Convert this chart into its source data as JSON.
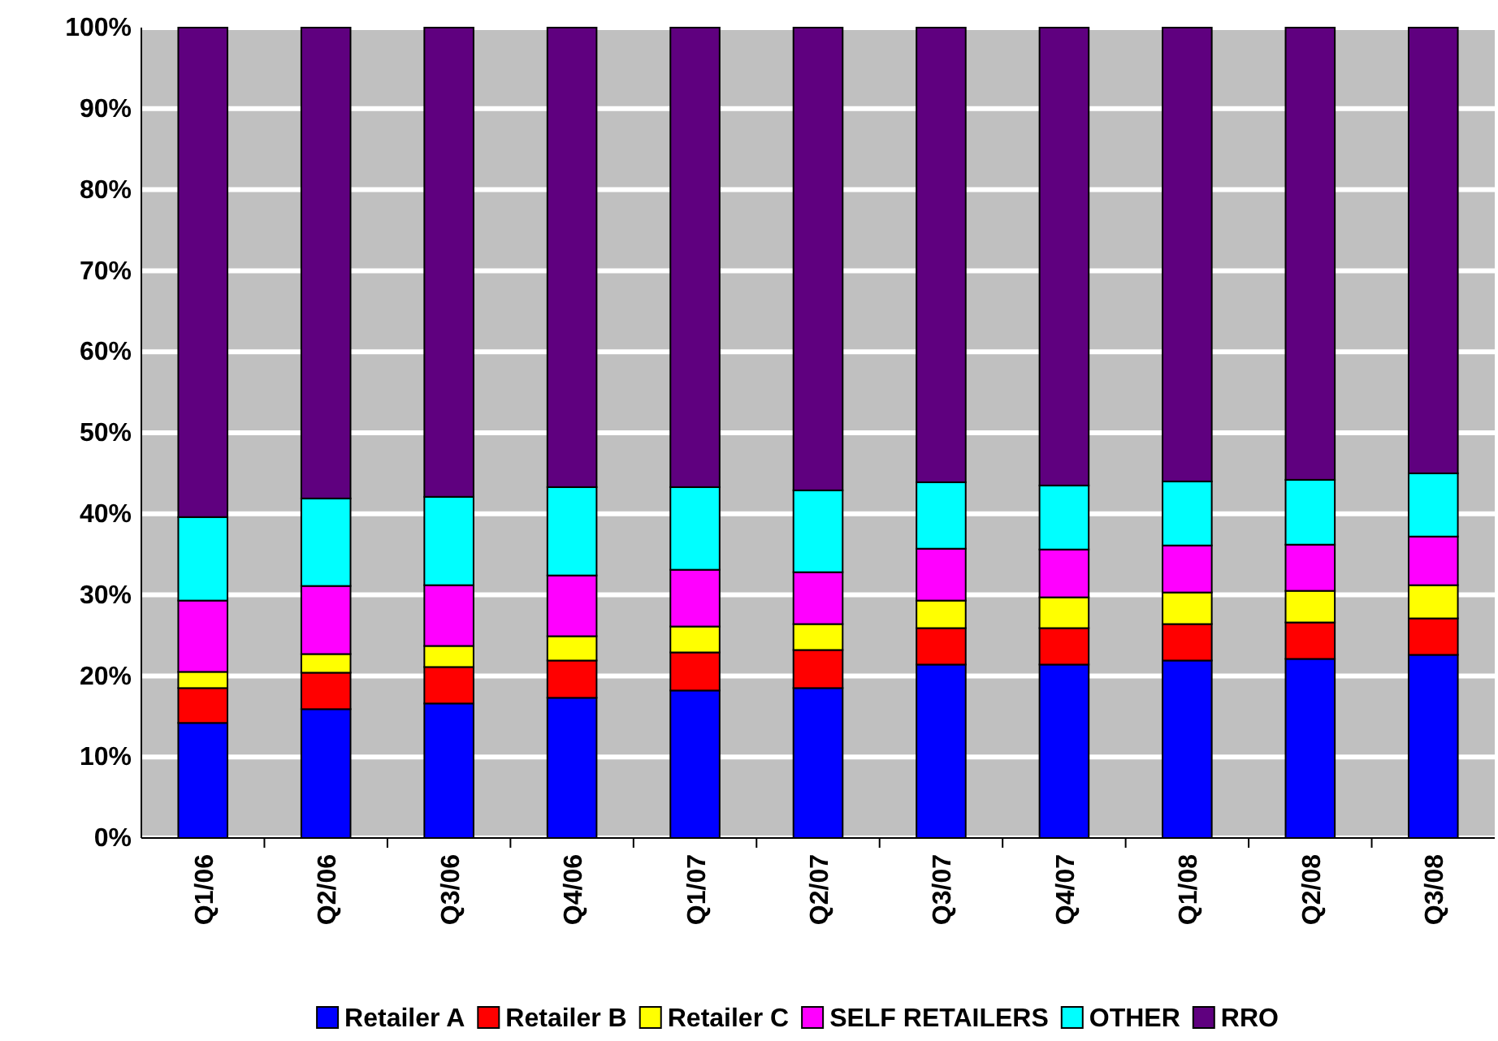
{
  "chart_data": {
    "type": "bar",
    "stacked": true,
    "categories": [
      "Q1/06",
      "Q2/06",
      "Q3/06",
      "Q4/06",
      "Q1/07",
      "Q2/07",
      "Q3/07",
      "Q4/07",
      "Q1/08",
      "Q2/08",
      "Q3/08"
    ],
    "series": [
      {
        "name": "Retailer A",
        "color": "#0000ff",
        "values": [
          14.2,
          15.9,
          16.6,
          17.3,
          18.2,
          18.5,
          21.4,
          21.4,
          21.9,
          22.1,
          22.6
        ]
      },
      {
        "name": "Retailer B",
        "color": "#ff0000",
        "values": [
          4.3,
          4.5,
          4.5,
          4.6,
          4.7,
          4.7,
          4.5,
          4.5,
          4.5,
          4.5,
          4.5
        ]
      },
      {
        "name": "Retailer C",
        "color": "#ffff00",
        "values": [
          2.0,
          2.3,
          2.6,
          3.0,
          3.2,
          3.2,
          3.4,
          3.8,
          3.9,
          3.9,
          4.1
        ]
      },
      {
        "name": "SELF RETAILERS",
        "color": "#ff00ff",
        "values": [
          8.8,
          8.4,
          7.5,
          7.5,
          7.0,
          6.4,
          6.4,
          5.9,
          5.8,
          5.7,
          6.0
        ]
      },
      {
        "name": "OTHER",
        "color": "#00ffff",
        "values": [
          10.3,
          10.8,
          10.9,
          10.9,
          10.2,
          10.1,
          8.2,
          7.9,
          7.9,
          8.0,
          7.8
        ]
      },
      {
        "name": "RRO",
        "color": "#5f007f",
        "values": [
          60.4,
          58.1,
          57.9,
          56.7,
          56.7,
          57.1,
          56.1,
          56.5,
          56.0,
          55.8,
          55.0
        ]
      }
    ],
    "ylim": [
      0,
      100
    ],
    "yticks": [
      {
        "value": 0,
        "label": "0%"
      },
      {
        "value": 10,
        "label": "10%"
      },
      {
        "value": 20,
        "label": "20%"
      },
      {
        "value": 30,
        "label": "30%"
      },
      {
        "value": 40,
        "label": "40%"
      },
      {
        "value": 50,
        "label": "50%"
      },
      {
        "value": 60,
        "label": "60%"
      },
      {
        "value": 70,
        "label": "70%"
      },
      {
        "value": 80,
        "label": "80%"
      },
      {
        "value": 90,
        "label": "90%"
      },
      {
        "value": 100,
        "label": "100%"
      }
    ],
    "grid": "y",
    "legend": "bottom"
  }
}
